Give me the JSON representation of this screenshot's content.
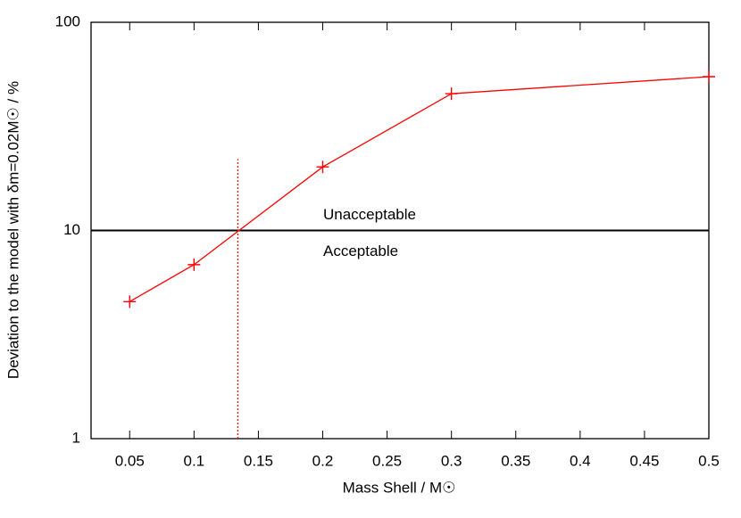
{
  "chart_data": {
    "type": "line",
    "x_label": "Mass Shell / M☉",
    "y_label": "Deviation to the model with δm=0.02M☉ / %",
    "x": [
      0.05,
      0.1,
      0.2,
      0.3,
      0.5
    ],
    "series": [
      {
        "color": "#ff0000",
        "values": [
          4.55,
          6.85,
          20.2,
          45.4,
          54.8
        ]
      }
    ],
    "xlim": [
      0.02,
      0.5
    ],
    "xticks": [
      0.05,
      0.1,
      0.15,
      0.2,
      0.25,
      0.3,
      0.35,
      0.4,
      0.45,
      0.5
    ],
    "ylim": [
      1,
      100
    ],
    "yticks": [
      1,
      10,
      100
    ],
    "y_log": true,
    "threshold": {
      "value": 10,
      "color": "#000000",
      "above_label": "Unacceptable",
      "below_label": "Acceptable"
    },
    "crossing": {
      "x": 0.134,
      "y_top": 22,
      "color": "#ff0000"
    }
  }
}
